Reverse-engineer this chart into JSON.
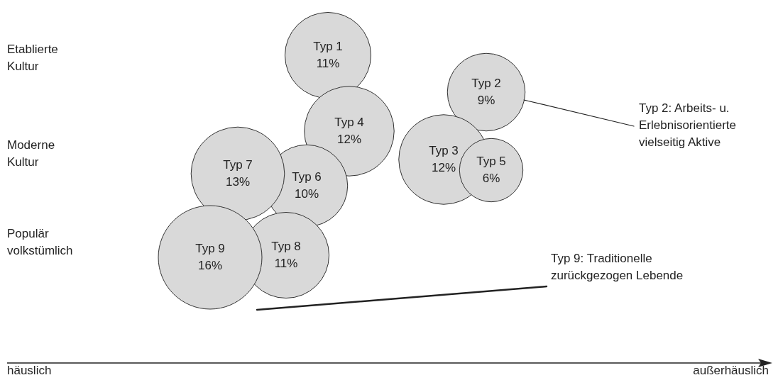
{
  "chart_data": {
    "type": "other",
    "color": "#d9d9d9",
    "categories": [
      "Typ 1",
      "Typ 2",
      "Typ 3",
      "Typ 4",
      "Typ 5",
      "Typ 6",
      "Typ 7",
      "Typ 8",
      "Typ 9"
    ],
    "values": [
      11,
      9,
      12,
      12,
      6,
      10,
      13,
      11,
      16
    ],
    "value_labels": [
      "11%",
      "9%",
      "12%",
      "12%",
      "6%",
      "10%",
      "13%",
      "11%",
      "16%"
    ],
    "annotations": [
      "Etablierte Kultur",
      "Typ 2: Arbeits- u. Erlebnisorientierte vielseitig Aktive",
      "Moderne Kultur",
      "Populär volkstümlich",
      "Typ 9: Traditionelle zurückgezogen Lebende",
      "häuslich",
      "außerhäuslich"
    ]
  }
}
